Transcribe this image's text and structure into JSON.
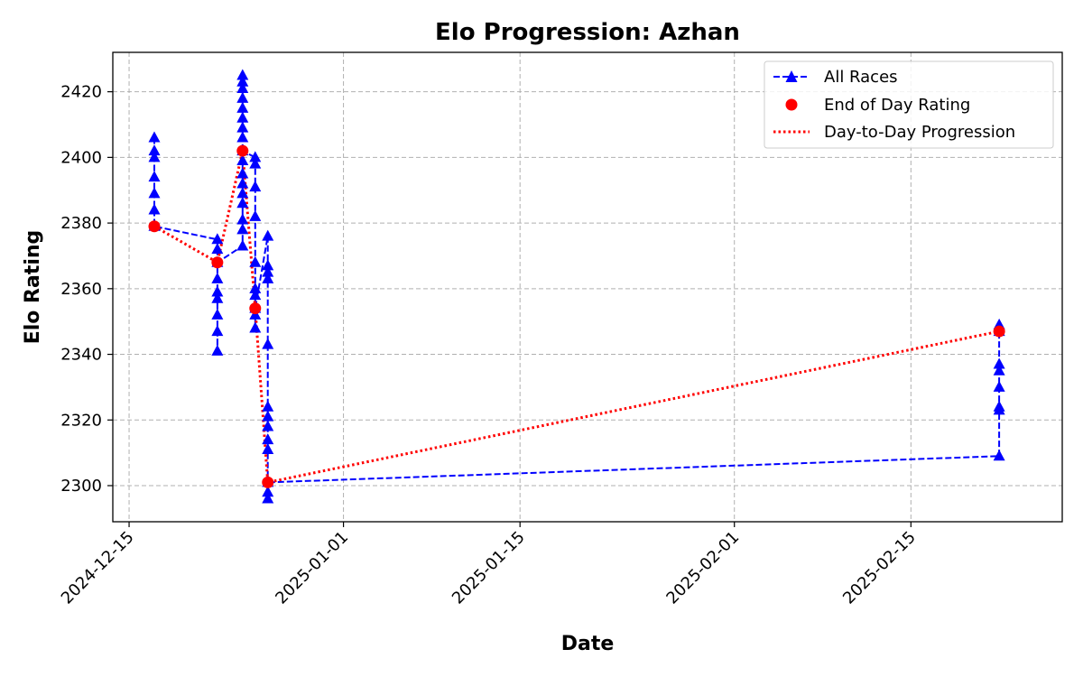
{
  "chart_data": {
    "type": "line",
    "title": "Elo Progression: Azhan",
    "xlabel": "Date",
    "ylabel": "Elo Rating",
    "xlim": [
      "2024-12-13T17:00",
      "2025-02-27T00:00"
    ],
    "ylim": [
      2289,
      2432
    ],
    "x_ticks": [
      "2024-12-15",
      "2025-01-01",
      "2025-01-15",
      "2025-02-01",
      "2025-02-15"
    ],
    "y_ticks": [
      2300,
      2320,
      2340,
      2360,
      2380,
      2400,
      2420
    ],
    "grid": true,
    "legend_position": "top-right",
    "series": [
      {
        "name": "All Races",
        "color": "#0000ff",
        "style": "dashed",
        "marker": "triangle-up",
        "points": [
          [
            "2024-12-17",
            2406
          ],
          [
            "2024-12-17",
            2402
          ],
          [
            "2024-12-17",
            2400
          ],
          [
            "2024-12-17",
            2394
          ],
          [
            "2024-12-17",
            2389
          ],
          [
            "2024-12-17",
            2384
          ],
          [
            "2024-12-17",
            2379
          ],
          [
            "2024-12-22",
            2375
          ],
          [
            "2024-12-22",
            2372
          ],
          [
            "2024-12-22",
            2363
          ],
          [
            "2024-12-22",
            2359
          ],
          [
            "2024-12-22",
            2357
          ],
          [
            "2024-12-22",
            2352
          ],
          [
            "2024-12-22",
            2347
          ],
          [
            "2024-12-22",
            2341
          ],
          [
            "2024-12-22",
            2368
          ],
          [
            "2024-12-24",
            2373
          ],
          [
            "2024-12-24",
            2425
          ],
          [
            "2024-12-24",
            2423
          ],
          [
            "2024-12-24",
            2421
          ],
          [
            "2024-12-24",
            2418
          ],
          [
            "2024-12-24",
            2415
          ],
          [
            "2024-12-24",
            2412
          ],
          [
            "2024-12-24",
            2409
          ],
          [
            "2024-12-24",
            2406
          ],
          [
            "2024-12-24",
            2399
          ],
          [
            "2024-12-24",
            2395
          ],
          [
            "2024-12-24",
            2392
          ],
          [
            "2024-12-24",
            2389
          ],
          [
            "2024-12-24",
            2386
          ],
          [
            "2024-12-24",
            2381
          ],
          [
            "2024-12-24",
            2378
          ],
          [
            "2024-12-24",
            2402
          ],
          [
            "2024-12-25",
            2400
          ],
          [
            "2024-12-25",
            2398
          ],
          [
            "2024-12-25",
            2391
          ],
          [
            "2024-12-25",
            2382
          ],
          [
            "2024-12-25",
            2368
          ],
          [
            "2024-12-25",
            2360
          ],
          [
            "2024-12-25",
            2358
          ],
          [
            "2024-12-25",
            2352
          ],
          [
            "2024-12-25",
            2348
          ],
          [
            "2024-12-25",
            2354
          ],
          [
            "2024-12-26",
            2376
          ],
          [
            "2024-12-26",
            2367
          ],
          [
            "2024-12-26",
            2365
          ],
          [
            "2024-12-26",
            2363
          ],
          [
            "2024-12-26",
            2343
          ],
          [
            "2024-12-26",
            2324
          ],
          [
            "2024-12-26",
            2321
          ],
          [
            "2024-12-26",
            2318
          ],
          [
            "2024-12-26",
            2314
          ],
          [
            "2024-12-26",
            2311
          ],
          [
            "2024-12-26",
            2298
          ],
          [
            "2024-12-26",
            2296
          ],
          [
            "2024-12-26",
            2301
          ],
          [
            "2025-02-22",
            2309
          ],
          [
            "2025-02-22",
            2323
          ],
          [
            "2025-02-22",
            2324
          ],
          [
            "2025-02-22",
            2330
          ],
          [
            "2025-02-22",
            2335
          ],
          [
            "2025-02-22",
            2337
          ],
          [
            "2025-02-22",
            2349
          ],
          [
            "2025-02-22",
            2347
          ]
        ]
      },
      {
        "name": "End of Day Rating",
        "color": "#ff0000",
        "marker": "circle",
        "points": [
          [
            "2024-12-17",
            2379
          ],
          [
            "2024-12-22",
            2368
          ],
          [
            "2024-12-24",
            2402
          ],
          [
            "2024-12-25",
            2354
          ],
          [
            "2024-12-26",
            2301
          ],
          [
            "2025-02-22",
            2347
          ]
        ]
      },
      {
        "name": "Day-to-Day Progression",
        "color": "#ff0000",
        "style": "dotted",
        "points": [
          [
            "2024-12-17",
            2379
          ],
          [
            "2024-12-22",
            2368
          ],
          [
            "2024-12-24",
            2402
          ],
          [
            "2024-12-25",
            2354
          ],
          [
            "2024-12-26",
            2301
          ],
          [
            "2025-02-22",
            2347
          ]
        ]
      }
    ]
  }
}
